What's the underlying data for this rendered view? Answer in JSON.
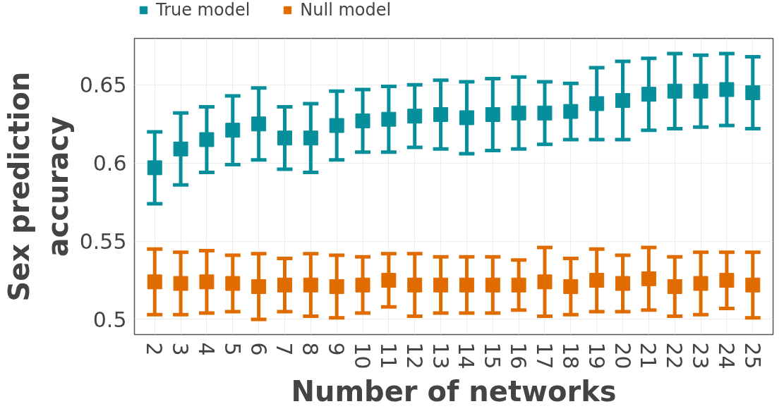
{
  "chart_data": {
    "type": "scatter",
    "xlabel": "Number of networks",
    "ylabel": "Sex prediction\naccuracy",
    "categories": [
      "2",
      "3",
      "4",
      "5",
      "6",
      "7",
      "8",
      "9",
      "10",
      "11",
      "12",
      "13",
      "14",
      "15",
      "16",
      "17",
      "18",
      "19",
      "20",
      "21",
      "22",
      "23",
      "24",
      "25"
    ],
    "series": [
      {
        "name": "True model",
        "color": "#078e9b",
        "values": [
          0.597,
          0.609,
          0.615,
          0.621,
          0.625,
          0.616,
          0.616,
          0.624,
          0.627,
          0.628,
          0.63,
          0.631,
          0.629,
          0.631,
          0.632,
          0.632,
          0.633,
          0.638,
          0.64,
          0.644,
          0.646,
          0.646,
          0.647,
          0.645
        ],
        "errors": [
          0.023,
          0.023,
          0.021,
          0.022,
          0.023,
          0.02,
          0.022,
          0.022,
          0.02,
          0.021,
          0.02,
          0.022,
          0.023,
          0.023,
          0.023,
          0.02,
          0.018,
          0.023,
          0.025,
          0.023,
          0.024,
          0.023,
          0.023,
          0.023
        ]
      },
      {
        "name": "Null model",
        "color": "#e06c00",
        "values": [
          0.524,
          0.523,
          0.524,
          0.523,
          0.521,
          0.522,
          0.522,
          0.521,
          0.522,
          0.525,
          0.522,
          0.522,
          0.522,
          0.522,
          0.522,
          0.524,
          0.521,
          0.525,
          0.523,
          0.526,
          0.521,
          0.523,
          0.525,
          0.522
        ],
        "errors": [
          0.021,
          0.02,
          0.02,
          0.018,
          0.021,
          0.017,
          0.02,
          0.02,
          0.018,
          0.017,
          0.02,
          0.018,
          0.018,
          0.018,
          0.016,
          0.022,
          0.018,
          0.02,
          0.018,
          0.02,
          0.019,
          0.02,
          0.018,
          0.021
        ]
      }
    ],
    "ylim": [
      0.4903,
      0.6797
    ],
    "yticks": [
      0.5,
      0.55,
      0.6,
      0.65
    ],
    "grid": true,
    "legend": "top",
    "marker": "square"
  }
}
